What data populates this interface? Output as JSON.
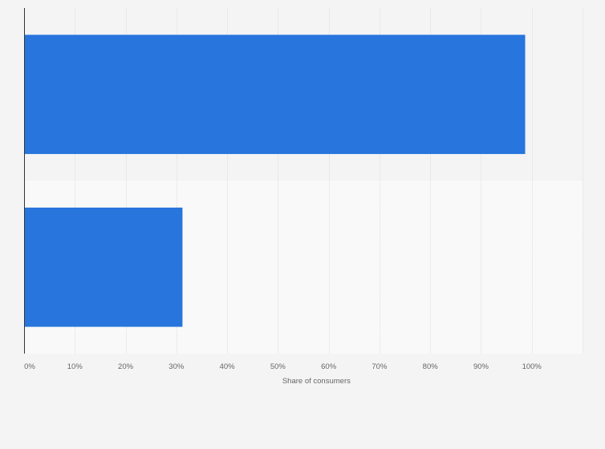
{
  "chart_data": {
    "type": "bar",
    "orientation": "horizontal",
    "categories": [
      "",
      ""
    ],
    "values": [
      98.7,
      31.2
    ],
    "xlabel": "Share of consumers",
    "ylabel": "",
    "xlim": [
      0,
      110
    ],
    "x_ticks": [
      "0%",
      "10%",
      "20%",
      "30%",
      "40%",
      "50%",
      "60%",
      "70%",
      "80%",
      "90%",
      "100%"
    ],
    "grid": true,
    "colors": {
      "bar": "#2775dd",
      "band_even": "#f4f4f4",
      "band_odd": "#f9f9f9",
      "grid": "#dedede",
      "axis": "#333333",
      "text": "#666666"
    }
  }
}
